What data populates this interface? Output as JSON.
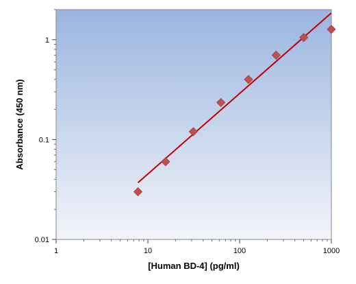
{
  "chart_data": {
    "type": "scatter",
    "title": "",
    "xlabel": "[Human BD-4] (pg/ml)",
    "ylabel": "Absorbance (450 nm)",
    "xscale": "log",
    "yscale": "log",
    "xlim": [
      1,
      1000
    ],
    "ylim": [
      0.01,
      2
    ],
    "xticks": [
      1,
      10,
      100,
      1000
    ],
    "xtick_labels": [
      "1",
      "10",
      "100",
      "1000"
    ],
    "yticks": [
      0.01,
      0.1,
      1
    ],
    "ytick_labels": [
      "0.01",
      "0.1",
      "1"
    ],
    "grid": false,
    "legend": "none",
    "series": [
      {
        "type": "scatter",
        "marker": "diamond",
        "x": [
          7.8,
          15.6,
          31.25,
          62.5,
          125,
          250,
          500,
          1000
        ],
        "y": [
          0.03,
          0.06,
          0.12,
          0.235,
          0.4,
          0.7,
          1.05,
          1.27
        ],
        "color": "#c0504d"
      },
      {
        "type": "line",
        "fit": "power",
        "x": [
          7.8,
          1000
        ],
        "y": [
          0.037,
          1.85
        ],
        "color": "#c00000"
      }
    ],
    "plot_background": [
      "#9bb5e0",
      "#f2f4f9"
    ]
  }
}
